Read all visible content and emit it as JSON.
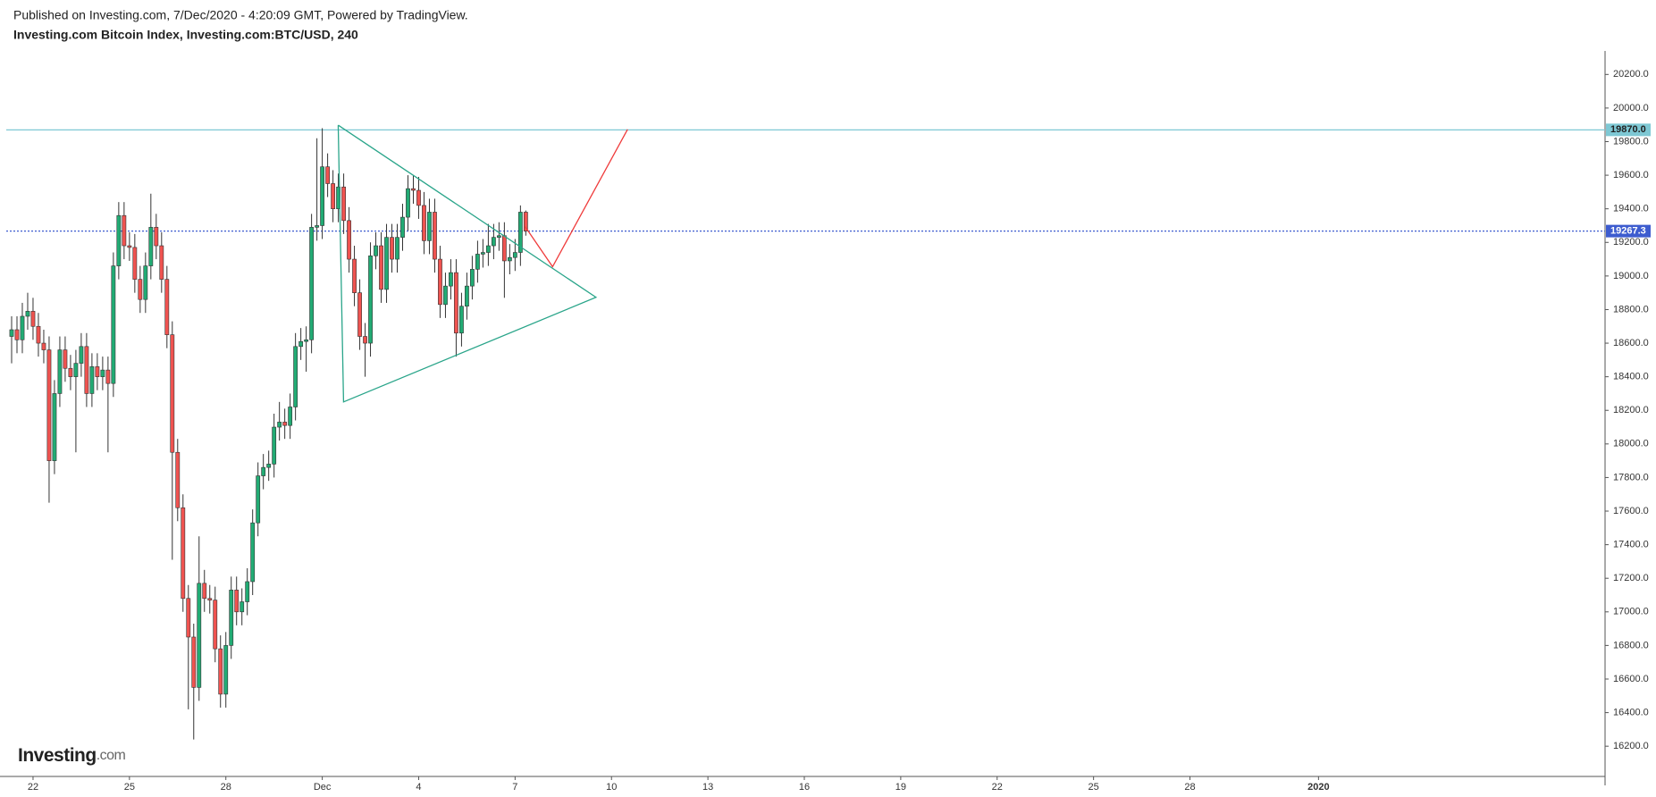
{
  "header": {
    "published": "Published on Investing.com, 7/Dec/2020 - 4:20:09 GMT, Powered by TradingView.",
    "title": "Investing.com Bitcoin Index, Investing.com:BTC/USD, 240"
  },
  "logo": {
    "brand": "Investing",
    "suffix": ".com"
  },
  "chart_data": {
    "type": "candlestick",
    "up_color": "#22ab74",
    "down_color": "#ef5350",
    "wick_color": "#333333",
    "x": [
      -16,
      -12,
      -8,
      -4,
      0,
      4,
      8,
      12,
      16,
      20,
      24,
      28,
      32,
      36,
      40,
      44,
      48,
      52,
      56,
      60,
      64,
      68,
      72,
      76,
      80,
      84,
      88,
      92,
      96,
      100,
      104,
      108,
      112,
      116,
      120,
      124,
      128,
      132,
      136,
      140,
      144,
      148,
      152,
      156,
      160,
      164,
      168,
      172,
      176,
      180,
      184,
      188,
      192,
      196,
      200,
      204,
      208,
      212,
      216,
      220,
      224,
      228,
      232,
      236,
      240,
      244,
      248,
      252,
      256,
      260,
      264,
      268,
      272,
      276,
      280,
      284,
      288,
      292,
      296,
      300,
      304,
      308,
      312,
      316,
      320,
      324,
      328,
      332,
      336,
      340,
      344,
      348,
      352,
      356,
      360,
      364,
      368
    ],
    "open": [
      18640,
      18680,
      18620,
      18760,
      18790,
      18700,
      18600,
      18560,
      17900,
      18300,
      18560,
      18450,
      18400,
      18480,
      18580,
      18300,
      18460,
      18400,
      18440,
      18360,
      19060,
      19360,
      19180,
      19170,
      18980,
      18860,
      19060,
      19290,
      19180,
      18980,
      18650,
      17950,
      17620,
      17080,
      16850,
      16550,
      17170,
      17080,
      17070,
      16780,
      16510,
      16800,
      17130,
      17000,
      17060,
      17180,
      17530,
      17810,
      17860,
      17880,
      18100,
      18130,
      18110,
      18220,
      18580,
      18610,
      18620,
      19290,
      19300,
      19650,
      19550,
      19400,
      19530,
      19330,
      19100,
      18900,
      18640,
      18600,
      19120,
      19180,
      18920,
      19230,
      19100,
      19230,
      19350,
      19520,
      19510,
      19420,
      19210,
      19380,
      19100,
      18830,
      18940,
      19020,
      18660,
      18820,
      18940,
      19040,
      19130,
      19140,
      19180,
      19230,
      19240,
      19090,
      19110,
      19140,
      19380
    ],
    "high": [
      18760,
      18760,
      18840,
      18900,
      18870,
      18780,
      18680,
      18640,
      18380,
      18640,
      18640,
      18530,
      18560,
      18660,
      18660,
      18540,
      18540,
      18520,
      18520,
      19140,
      19440,
      19440,
      19260,
      19250,
      19060,
      19140,
      19490,
      19370,
      19260,
      19060,
      18730,
      18030,
      17700,
      17160,
      16930,
      17450,
      17250,
      17160,
      17150,
      16860,
      16880,
      17210,
      17210,
      17140,
      17260,
      17610,
      17890,
      17940,
      17960,
      18180,
      18250,
      18210,
      18300,
      18660,
      18690,
      18700,
      19370,
      19820,
      19880,
      19730,
      19630,
      19610,
      19610,
      19410,
      19180,
      18980,
      18720,
      19200,
      19260,
      19260,
      19310,
      19310,
      19310,
      19430,
      19600,
      19600,
      19590,
      19500,
      19460,
      19460,
      19180,
      19020,
      19100,
      19100,
      18900,
      19020,
      19120,
      19210,
      19220,
      19310,
      19310,
      19320,
      19320,
      19190,
      19220,
      19420,
      19390
    ],
    "low": [
      18480,
      18540,
      18540,
      18680,
      18620,
      18520,
      18480,
      17650,
      17820,
      18220,
      18370,
      18320,
      17950,
      18400,
      18220,
      18220,
      18320,
      18320,
      17950,
      18280,
      18980,
      19100,
      19090,
      18900,
      18780,
      18780,
      18980,
      19100,
      18900,
      18570,
      17310,
      17540,
      17000,
      16420,
      16240,
      16470,
      17000,
      16990,
      16700,
      16430,
      16430,
      16720,
      16920,
      16920,
      16980,
      17100,
      17450,
      17730,
      17780,
      17800,
      18020,
      18030,
      18030,
      18140,
      18500,
      18430,
      18540,
      19210,
      19220,
      19470,
      19320,
      19320,
      19250,
      19020,
      18820,
      18560,
      18400,
      18520,
      19040,
      18840,
      18840,
      19020,
      19020,
      19150,
      19270,
      19430,
      19340,
      19130,
      19130,
      19020,
      18750,
      18750,
      18860,
      18520,
      18580,
      18740,
      18860,
      18960,
      19050,
      19060,
      19100,
      19150,
      18870,
      19010,
      19030,
      19060,
      19240
    ],
    "close": [
      18680,
      18620,
      18760,
      18790,
      18700,
      18600,
      18560,
      17900,
      18300,
      18560,
      18450,
      18400,
      18480,
      18580,
      18300,
      18460,
      18400,
      18440,
      18360,
      19060,
      19360,
      19180,
      19170,
      18980,
      18860,
      19060,
      19290,
      19180,
      18980,
      18650,
      17950,
      17620,
      17080,
      16850,
      16550,
      17170,
      17080,
      17070,
      16780,
      16510,
      16800,
      17130,
      17000,
      17060,
      17180,
      17530,
      17810,
      17860,
      17880,
      18100,
      18130,
      18110,
      18220,
      18580,
      18610,
      18620,
      19290,
      19300,
      19650,
      19550,
      19400,
      19530,
      19330,
      19100,
      18900,
      18640,
      18600,
      19120,
      19180,
      18920,
      19230,
      19100,
      19230,
      19350,
      19520,
      19510,
      19420,
      19210,
      19380,
      19100,
      18830,
      18940,
      19020,
      18660,
      18820,
      18940,
      19040,
      19130,
      19140,
      19180,
      19230,
      19240,
      19090,
      19110,
      19140,
      19380,
      19267.3
    ],
    "xlim": [
      -20,
      1174
    ],
    "xticks": [
      {
        "value": 0,
        "label": "22"
      },
      {
        "value": 72,
        "label": "25"
      },
      {
        "value": 144,
        "label": "28"
      },
      {
        "value": 216,
        "label": "Dec"
      },
      {
        "value": 288,
        "label": "4"
      },
      {
        "value": 360,
        "label": "7"
      },
      {
        "value": 432,
        "label": "10"
      },
      {
        "value": 504,
        "label": "13"
      },
      {
        "value": 576,
        "label": "16"
      },
      {
        "value": 648,
        "label": "19"
      },
      {
        "value": 720,
        "label": "22"
      },
      {
        "value": 792,
        "label": "25"
      },
      {
        "value": 864,
        "label": "28"
      },
      {
        "value": 960,
        "label": "2020"
      }
    ],
    "ylim": [
      16020,
      20340
    ],
    "yticks": [
      {
        "value": 16200,
        "label": "16200.0"
      },
      {
        "value": 16400,
        "label": "16400.0"
      },
      {
        "value": 16600,
        "label": "16600.0"
      },
      {
        "value": 16800,
        "label": "16800.0"
      },
      {
        "value": 17000,
        "label": "17000.0"
      },
      {
        "value": 17200,
        "label": "17200.0"
      },
      {
        "value": 17400,
        "label": "17400.0"
      },
      {
        "value": 17600,
        "label": "17600.0"
      },
      {
        "value": 17800,
        "label": "17800.0"
      },
      {
        "value": 18000,
        "label": "18000.0"
      },
      {
        "value": 18200,
        "label": "18200.0"
      },
      {
        "value": 18400,
        "label": "18400.0"
      },
      {
        "value": 18600,
        "label": "18600.0"
      },
      {
        "value": 18800,
        "label": "18800.0"
      },
      {
        "value": 19000,
        "label": "19000.0"
      },
      {
        "value": 19200,
        "label": "19200.0"
      },
      {
        "value": 19400,
        "label": "19400.0"
      },
      {
        "value": 19600,
        "label": "19600.0"
      },
      {
        "value": 19800,
        "label": "19800.0"
      },
      {
        "value": 20000,
        "label": "20000.0"
      },
      {
        "value": 20200,
        "label": "20200.0"
      }
    ],
    "price_lines": [
      {
        "value": 19870,
        "label": "19870.0",
        "color": "#7ec8d4",
        "text_color": "#222222",
        "dashed": false
      },
      {
        "value": 19267.3,
        "label": "19267.3",
        "color": "#3d5ccf",
        "text_color": "#ffffff",
        "dashed": true
      }
    ],
    "drawings": [
      {
        "color": "#2aa58a",
        "points": [
          [
            227.9,
            19898
          ],
          [
            420.4,
            18873
          ],
          [
            231.9,
            18250
          ],
          [
            227.9,
            19898
          ]
        ]
      },
      {
        "color": "#ef3b3b",
        "points": [
          [
            367.5,
            19294
          ],
          [
            388.0,
            19055
          ],
          [
            444.0,
            19873
          ]
        ]
      }
    ]
  }
}
